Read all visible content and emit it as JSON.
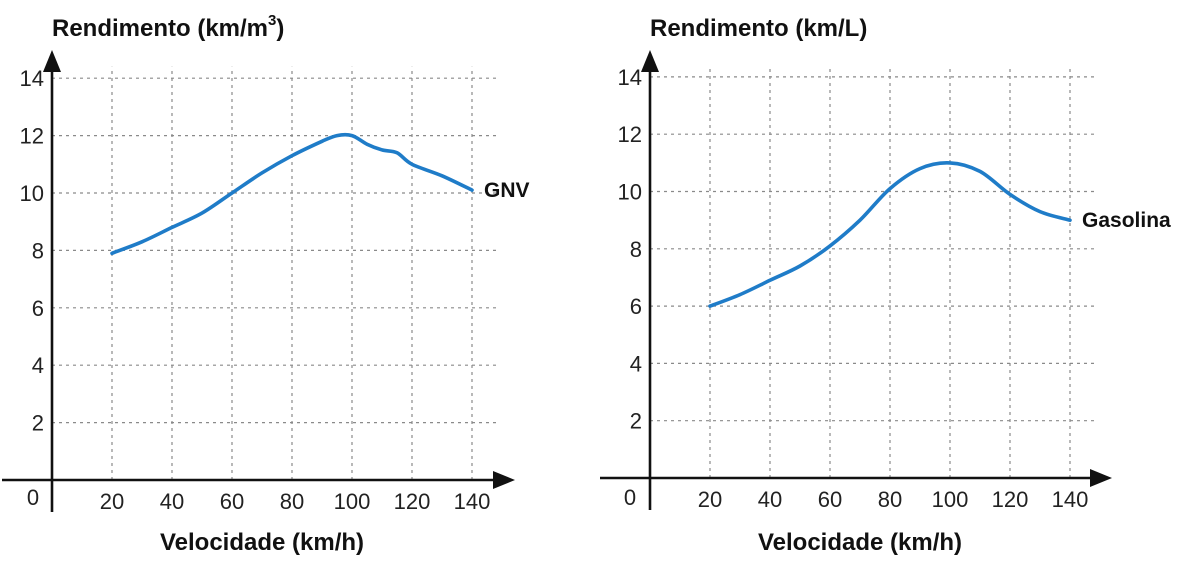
{
  "chart_data": [
    {
      "type": "line",
      "ylabel": "Rendimento (km/m",
      "ylabel_sup": "3",
      "ylabel_end": ")",
      "xlabel": "Velocidade (km/h)",
      "origin_label": "0",
      "xlim": [
        0,
        150
      ],
      "ylim": [
        0,
        14.5
      ],
      "xticks": [
        20,
        40,
        60,
        80,
        100,
        120,
        140
      ],
      "yticks": [
        2,
        4,
        6,
        8,
        10,
        12,
        14
      ],
      "grid": true,
      "series": [
        {
          "name": "GNV",
          "color": "#1f7cc8",
          "x": [
            20,
            30,
            40,
            50,
            60,
            70,
            80,
            90,
            95,
            100,
            105,
            110,
            115,
            120,
            130,
            140
          ],
          "values": [
            7.9,
            8.3,
            8.8,
            9.3,
            10.0,
            10.7,
            11.3,
            11.8,
            12.0,
            12.0,
            11.7,
            11.5,
            11.4,
            11.0,
            10.6,
            10.1
          ]
        }
      ]
    },
    {
      "type": "line",
      "ylabel": "Rendimento (km/L)",
      "ylabel_sup": "",
      "ylabel_end": "",
      "xlabel": "Velocidade (km/h)",
      "origin_label": "0",
      "xlim": [
        0,
        150
      ],
      "ylim": [
        0,
        14.5
      ],
      "xticks": [
        20,
        40,
        60,
        80,
        100,
        120,
        140
      ],
      "yticks": [
        2,
        4,
        6,
        8,
        10,
        12,
        14
      ],
      "grid": true,
      "series": [
        {
          "name": "Gasolina",
          "color": "#1f7cc8",
          "x": [
            20,
            30,
            40,
            50,
            60,
            70,
            80,
            90,
            100,
            110,
            120,
            130,
            140
          ],
          "values": [
            6.0,
            6.4,
            6.9,
            7.4,
            8.1,
            9.0,
            10.1,
            10.8,
            11.0,
            10.7,
            9.9,
            9.3,
            9.0
          ]
        }
      ]
    }
  ]
}
